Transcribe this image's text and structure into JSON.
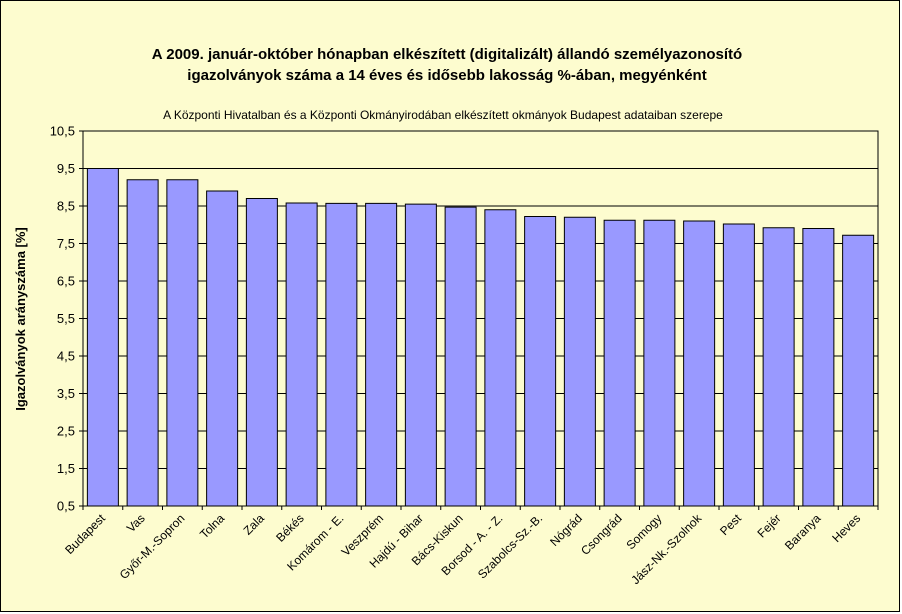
{
  "chart_data": {
    "type": "bar",
    "title": [
      "A 2009. január-október hónapban elkészített (digitalizált) állandó személyazonosító",
      "igazolványok száma a 14 éves és idősebb lakosság %-ában, megyénként"
    ],
    "subtitle": "A  Központi Hivatalban és a Központi Okmányirodában elkészített okmányok Budapest adataiban szerepe",
    "xlabel": "",
    "ylabel": "Igazolványok arányszáma [%]",
    "ylim": [
      0.5,
      10.5
    ],
    "yticks": [
      "0,5",
      "1,5",
      "2,5",
      "3,5",
      "4,5",
      "5,5",
      "6,5",
      "7,5",
      "8,5",
      "9,5",
      "10,5"
    ],
    "grid": true,
    "categories": [
      "Budapest",
      "Vas",
      "Győr-M.-Sopron",
      "Tolna",
      "Zala",
      "Békés",
      "Komárom - E.",
      "Veszprém",
      "Hajdú - Bihar",
      "Bács-Kiskun",
      "Borsod - A. - Z.",
      "Szabolcs-Sz.-B.",
      "Nógrád",
      "Csongrád",
      "Somogy",
      "Jász-Nk.-Szolnok",
      "Pest",
      "Fejér",
      "Baranya",
      "Heves"
    ],
    "values": [
      9.5,
      9.2,
      9.2,
      8.9,
      8.7,
      8.58,
      8.57,
      8.57,
      8.55,
      8.47,
      8.4,
      8.22,
      8.2,
      8.12,
      8.12,
      8.1,
      8.02,
      7.92,
      7.9,
      7.72
    ],
    "colors": {
      "bar_fill": "#9999ff",
      "bar_stroke": "#000000",
      "plot_background": "#fdfccf",
      "gridline": "#000000"
    }
  }
}
